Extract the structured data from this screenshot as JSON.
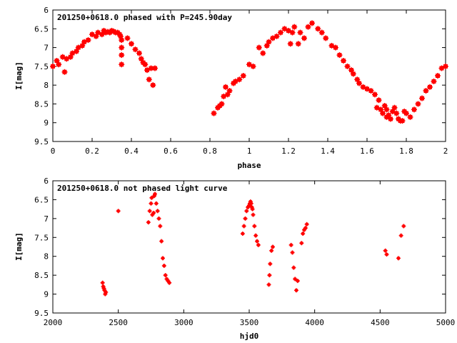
{
  "figure": {
    "background": "#ffffff",
    "marker_color": "#ff0000",
    "axis_color": "#000000"
  },
  "chart_data": [
    {
      "type": "scatter",
      "title": "201250+0618.0 phased with P=245.90day",
      "xlabel": "phase",
      "ylabel": "I[mag]",
      "xlim": [
        0,
        2
      ],
      "ylim": [
        6,
        9.5
      ],
      "y_inverted": true,
      "grid": false,
      "legend": "none",
      "xticks": [
        "0",
        "0.2",
        "0.4",
        "0.6",
        "0.8",
        "1",
        "1.2",
        "1.4",
        "1.6",
        "1.8",
        "2"
      ],
      "yticks": [
        "6",
        "6.5",
        "7",
        "7.5",
        "8",
        "8.5",
        "9",
        "9.5"
      ],
      "x": [
        0.0,
        0.02,
        0.03,
        0.05,
        0.06,
        0.07,
        0.09,
        0.1,
        0.12,
        0.13,
        0.15,
        0.16,
        0.18,
        0.2,
        0.22,
        0.23,
        0.25,
        0.26,
        0.27,
        0.28,
        0.29,
        0.3,
        0.31,
        0.32,
        0.33,
        0.34,
        0.345,
        0.35,
        0.35,
        0.35,
        0.35,
        0.38,
        0.4,
        0.42,
        0.44,
        0.45,
        0.46,
        0.47,
        0.48,
        0.49,
        0.5,
        0.51,
        0.52,
        0.82,
        0.84,
        0.85,
        0.86,
        0.87,
        0.88,
        0.89,
        0.9,
        0.92,
        0.93,
        0.95,
        0.97,
        1.0,
        1.02,
        1.05,
        1.07,
        1.09,
        1.1,
        1.12,
        1.14,
        1.16,
        1.18,
        1.2,
        1.21,
        1.22,
        1.23,
        1.25,
        1.26,
        1.28,
        1.3,
        1.32,
        1.35,
        1.37,
        1.39,
        1.42,
        1.44,
        1.46,
        1.48,
        1.5,
        1.52,
        1.53,
        1.55,
        1.56,
        1.58,
        1.6,
        1.62,
        1.64,
        1.65,
        1.66,
        1.67,
        1.68,
        1.69,
        1.7,
        1.7,
        1.71,
        1.72,
        1.73,
        1.74,
        1.75,
        1.76,
        1.77,
        1.78,
        1.79,
        1.8,
        1.82,
        1.84,
        1.86,
        1.88,
        1.9,
        1.92,
        1.94,
        1.96,
        1.98,
        2.0
      ],
      "y": [
        7.5,
        7.35,
        7.45,
        7.25,
        7.65,
        7.3,
        7.25,
        7.15,
        7.1,
        7.0,
        6.95,
        6.85,
        6.8,
        6.65,
        6.7,
        6.6,
        6.65,
        6.55,
        6.6,
        6.58,
        6.6,
        6.55,
        6.57,
        6.6,
        6.6,
        6.65,
        6.7,
        6.8,
        7.0,
        7.2,
        7.45,
        6.75,
        6.9,
        7.05,
        7.15,
        7.3,
        7.4,
        7.45,
        7.6,
        7.85,
        7.55,
        8.0,
        7.55,
        8.75,
        8.6,
        8.55,
        8.5,
        8.3,
        8.05,
        8.25,
        8.15,
        7.95,
        7.9,
        7.85,
        7.75,
        7.45,
        7.5,
        7.0,
        7.15,
        6.95,
        6.85,
        6.75,
        6.7,
        6.6,
        6.5,
        6.55,
        6.9,
        6.6,
        6.45,
        6.9,
        6.6,
        6.75,
        6.45,
        6.35,
        6.5,
        6.6,
        6.75,
        6.95,
        7.0,
        7.2,
        7.35,
        7.5,
        7.6,
        7.7,
        7.85,
        7.95,
        8.05,
        8.1,
        8.15,
        8.25,
        8.6,
        8.4,
        8.65,
        8.75,
        8.55,
        8.65,
        8.85,
        8.8,
        8.9,
        8.7,
        8.6,
        8.75,
        8.9,
        8.95,
        8.95,
        8.7,
        8.75,
        8.85,
        8.65,
        8.5,
        8.35,
        8.15,
        8.05,
        7.9,
        7.75,
        7.55,
        7.5
      ]
    },
    {
      "type": "scatter",
      "title": "201250+0618.0 not phased light curve",
      "xlabel": "hjd0",
      "ylabel": "I[mag]",
      "xlim": [
        2000,
        5000
      ],
      "ylim": [
        6,
        9.5
      ],
      "y_inverted": true,
      "grid": false,
      "legend": "none",
      "xticks": [
        "2000",
        "2500",
        "3000",
        "3500",
        "4000",
        "4500",
        "5000"
      ],
      "yticks": [
        "6",
        "6.5",
        "7",
        "7.5",
        "8",
        "8.5",
        "9",
        "9.5"
      ],
      "x": [
        2380,
        2385,
        2390,
        2395,
        2400,
        2405,
        2500,
        2730,
        2740,
        2750,
        2755,
        2760,
        2770,
        2775,
        2780,
        2790,
        2800,
        2810,
        2820,
        2830,
        2840,
        2850,
        2860,
        2870,
        2880,
        2890,
        3450,
        3460,
        3470,
        3480,
        3490,
        3500,
        3505,
        3510,
        3515,
        3520,
        3525,
        3530,
        3540,
        3550,
        3560,
        3570,
        3650,
        3655,
        3660,
        3670,
        3680,
        3820,
        3830,
        3840,
        3850,
        3860,
        3870,
        3900,
        3910,
        3920,
        3930,
        3940,
        4540,
        4550,
        4640,
        4660,
        4680
      ],
      "y": [
        8.7,
        8.8,
        8.85,
        8.9,
        9.0,
        8.95,
        6.8,
        7.1,
        6.8,
        6.6,
        6.45,
        6.9,
        6.85,
        6.4,
        6.35,
        6.6,
        6.8,
        7.0,
        7.2,
        7.6,
        8.05,
        8.25,
        8.5,
        8.6,
        8.65,
        8.7,
        7.4,
        7.2,
        7.0,
        6.8,
        6.7,
        6.65,
        6.6,
        6.55,
        6.6,
        6.7,
        6.75,
        6.9,
        7.2,
        7.45,
        7.6,
        7.7,
        8.75,
        8.5,
        8.2,
        7.85,
        7.75,
        7.7,
        7.9,
        8.3,
        8.6,
        8.9,
        8.65,
        7.65,
        7.4,
        7.3,
        7.25,
        7.15,
        7.85,
        7.95,
        8.05,
        7.45,
        7.2
      ]
    }
  ]
}
